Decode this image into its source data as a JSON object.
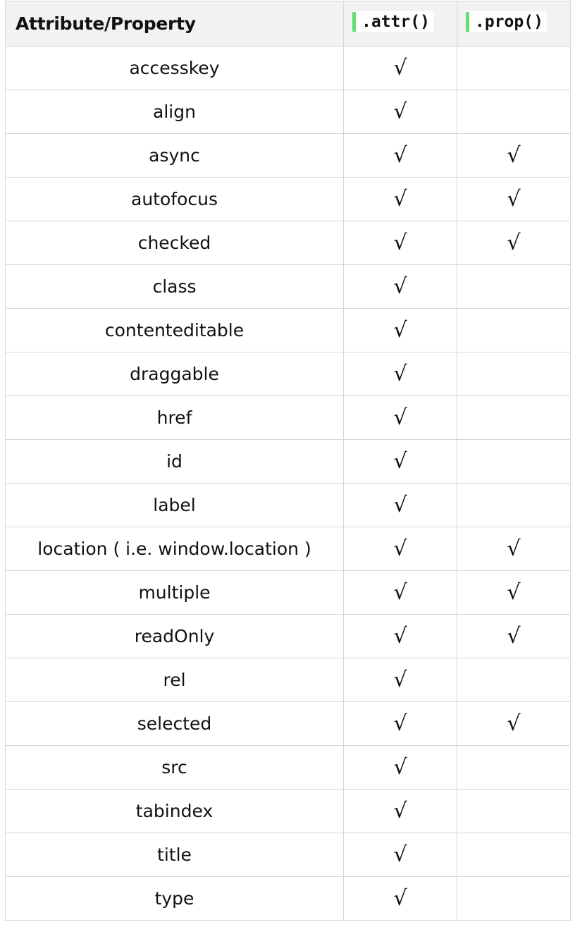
{
  "header": {
    "col_name": "Attribute/Property",
    "col_attr": ".attr()",
    "col_prop": ".prop()"
  },
  "check_mark": "√",
  "rows": [
    {
      "name": "accesskey",
      "attr": "√",
      "prop": ""
    },
    {
      "name": "align",
      "attr": "√",
      "prop": ""
    },
    {
      "name": "async",
      "attr": "√",
      "prop": "√"
    },
    {
      "name": "autofocus",
      "attr": "√",
      "prop": "√"
    },
    {
      "name": "checked",
      "attr": "√",
      "prop": "√"
    },
    {
      "name": "class",
      "attr": "√",
      "prop": ""
    },
    {
      "name": "contenteditable",
      "attr": "√",
      "prop": ""
    },
    {
      "name": "draggable",
      "attr": "√",
      "prop": ""
    },
    {
      "name": "href",
      "attr": "√",
      "prop": ""
    },
    {
      "name": "id",
      "attr": "√",
      "prop": ""
    },
    {
      "name": "label",
      "attr": "√",
      "prop": ""
    },
    {
      "name": "location ( i.e. window.location )",
      "attr": "√",
      "prop": "√"
    },
    {
      "name": "multiple",
      "attr": "√",
      "prop": "√"
    },
    {
      "name": "readOnly",
      "attr": "√",
      "prop": "√"
    },
    {
      "name": "rel",
      "attr": "√",
      "prop": ""
    },
    {
      "name": "selected",
      "attr": "√",
      "prop": "√"
    },
    {
      "name": "src",
      "attr": "√",
      "prop": ""
    },
    {
      "name": "tabindex",
      "attr": "√",
      "prop": ""
    },
    {
      "name": "title",
      "attr": "√",
      "prop": ""
    },
    {
      "name": "type",
      "attr": "√",
      "prop": ""
    }
  ],
  "colors": {
    "accent_bar": "#66dd77",
    "header_bg": "#f2f2f2",
    "border": "#d6d6d6"
  }
}
